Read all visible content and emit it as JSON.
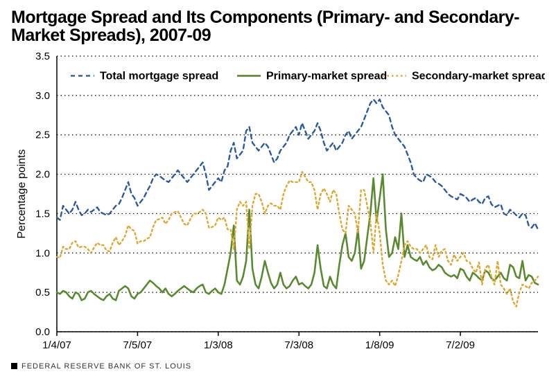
{
  "title": "Mortgage Spread and Its Components (Primary- and Secondary-Market Spreads), 2007-09",
  "chart": {
    "type": "line",
    "background_color": "#ffffff",
    "ylabel": "Percentage points",
    "ylabel_fontsize": 16,
    "tick_fontsize": 15,
    "ylim": [
      0.0,
      3.5
    ],
    "ytick_step": 0.5,
    "yticks": [
      "0.0",
      "0.5",
      "1.0",
      "1.5",
      "2.0",
      "2.5",
      "3.0",
      "3.5"
    ],
    "x_tick_positions": [
      0,
      26,
      52,
      78,
      104,
      130
    ],
    "x_tick_labels": [
      "1/4/07",
      "7/5/07",
      "1/3/08",
      "7/3/08",
      "1/8/09",
      "7/2/09"
    ],
    "x_domain": [
      0,
      155
    ],
    "grid_color": "#000000",
    "line_width": 2.2,
    "legend": {
      "fontsize": 16,
      "items": [
        {
          "label": "Total mortgage spread",
          "color": "#2c5aa0",
          "dash": "6 5",
          "width": 2.4
        },
        {
          "label": "Primary-market spread",
          "color": "#5a8a2f",
          "dash": "",
          "width": 2.6
        },
        {
          "label": "Secondary-market spread",
          "color": "#e0a62f",
          "dash": "2.5 4",
          "width": 2.4
        }
      ]
    },
    "series": [
      {
        "name": "total",
        "color": "#2c5aa0",
        "dash": "6 5",
        "width": 2.4,
        "y": [
          1.45,
          1.42,
          1.6,
          1.55,
          1.5,
          1.55,
          1.65,
          1.55,
          1.48,
          1.5,
          1.55,
          1.52,
          1.55,
          1.58,
          1.52,
          1.5,
          1.48,
          1.5,
          1.55,
          1.6,
          1.62,
          1.7,
          1.8,
          1.9,
          1.75,
          1.7,
          1.6,
          1.65,
          1.7,
          1.78,
          1.85,
          1.95,
          2.0,
          1.98,
          1.95,
          1.92,
          1.9,
          1.95,
          2.0,
          2.05,
          2.0,
          1.95,
          1.9,
          1.95,
          2.0,
          2.05,
          2.1,
          2.15,
          2.0,
          1.8,
          1.85,
          1.9,
          1.95,
          1.9,
          2.05,
          2.1,
          2.3,
          2.4,
          2.2,
          2.25,
          2.3,
          2.55,
          2.6,
          2.4,
          2.35,
          2.3,
          2.35,
          2.4,
          2.35,
          2.25,
          2.15,
          2.2,
          2.3,
          2.35,
          2.4,
          2.5,
          2.55,
          2.6,
          2.5,
          2.65,
          2.55,
          2.45,
          2.5,
          2.55,
          2.65,
          2.55,
          2.4,
          2.3,
          2.35,
          2.4,
          2.3,
          2.35,
          2.4,
          2.5,
          2.55,
          2.45,
          2.5,
          2.55,
          2.6,
          2.7,
          2.8,
          2.9,
          2.95,
          2.9,
          2.95,
          2.85,
          2.8,
          2.75,
          2.6,
          2.5,
          2.45,
          2.4,
          2.35,
          2.25,
          2.15,
          2.0,
          1.95,
          1.92,
          1.9,
          2.0,
          1.98,
          1.95,
          1.9,
          1.88,
          1.85,
          1.8,
          1.75,
          1.72,
          1.7,
          1.68,
          1.75,
          1.73,
          1.7,
          1.65,
          1.68,
          1.7,
          1.65,
          1.62,
          1.7,
          1.72,
          1.62,
          1.58,
          1.6,
          1.62,
          1.5,
          1.48,
          1.55,
          1.52,
          1.48,
          1.45,
          1.5,
          1.48,
          1.35,
          1.32,
          1.38,
          1.3
        ]
      },
      {
        "name": "primary",
        "color": "#5a8a2f",
        "dash": "",
        "width": 2.6,
        "y": [
          0.5,
          0.48,
          0.52,
          0.5,
          0.45,
          0.42,
          0.5,
          0.48,
          0.4,
          0.42,
          0.5,
          0.52,
          0.48,
          0.45,
          0.42,
          0.4,
          0.45,
          0.48,
          0.42,
          0.4,
          0.52,
          0.55,
          0.58,
          0.55,
          0.45,
          0.42,
          0.48,
          0.5,
          0.55,
          0.6,
          0.65,
          0.62,
          0.58,
          0.55,
          0.5,
          0.55,
          0.48,
          0.45,
          0.48,
          0.52,
          0.55,
          0.58,
          0.55,
          0.52,
          0.5,
          0.55,
          0.58,
          0.6,
          0.5,
          0.48,
          0.52,
          0.55,
          0.5,
          0.48,
          0.6,
          0.8,
          1.0,
          1.35,
          0.65,
          0.6,
          0.7,
          0.9,
          1.55,
          0.8,
          0.6,
          0.55,
          0.7,
          0.9,
          0.75,
          0.62,
          0.55,
          0.6,
          0.75,
          0.6,
          0.55,
          0.58,
          0.65,
          0.7,
          0.6,
          0.62,
          0.58,
          0.55,
          0.6,
          0.75,
          1.1,
          0.8,
          0.58,
          0.55,
          0.7,
          0.6,
          0.55,
          0.85,
          1.1,
          1.25,
          0.95,
          0.9,
          1.0,
          1.3,
          0.8,
          0.9,
          1.2,
          1.5,
          1.95,
          1.4,
          1.7,
          2.0,
          1.3,
          0.95,
          1.0,
          1.2,
          1.05,
          1.5,
          0.95,
          1.1,
          0.95,
          0.92,
          0.9,
          0.95,
          0.85,
          0.9,
          0.82,
          0.78,
          0.8,
          0.85,
          0.82,
          0.75,
          0.72,
          0.7,
          0.72,
          0.68,
          0.8,
          0.78,
          0.7,
          0.65,
          0.75,
          0.72,
          0.68,
          0.65,
          0.78,
          0.75,
          0.68,
          0.65,
          0.7,
          0.75,
          0.68,
          0.65,
          0.85,
          0.82,
          0.7,
          0.68,
          0.9,
          0.65,
          0.72,
          0.7,
          0.62,
          0.6
        ]
      },
      {
        "name": "secondary",
        "color": "#e0a62f",
        "dash": "2.5 4",
        "width": 2.4,
        "y": [
          0.95,
          0.94,
          1.08,
          1.05,
          1.05,
          1.13,
          1.15,
          1.07,
          1.08,
          1.08,
          1.05,
          1.0,
          1.07,
          1.13,
          1.1,
          1.1,
          1.03,
          1.02,
          1.13,
          1.2,
          1.1,
          1.15,
          1.22,
          1.35,
          1.3,
          1.28,
          1.12,
          1.15,
          1.15,
          1.18,
          1.2,
          1.33,
          1.42,
          1.43,
          1.45,
          1.37,
          1.42,
          1.5,
          1.52,
          1.53,
          1.45,
          1.37,
          1.35,
          1.43,
          1.5,
          1.5,
          1.52,
          1.55,
          1.5,
          1.32,
          1.33,
          1.35,
          1.45,
          1.42,
          1.45,
          1.3,
          1.3,
          1.05,
          1.55,
          1.65,
          1.6,
          1.65,
          1.05,
          1.6,
          1.75,
          1.75,
          1.65,
          1.5,
          1.6,
          1.63,
          1.6,
          1.6,
          1.55,
          1.75,
          1.85,
          1.92,
          1.9,
          1.9,
          1.9,
          2.03,
          1.97,
          1.9,
          1.9,
          1.8,
          1.55,
          1.75,
          1.82,
          1.75,
          1.65,
          1.8,
          1.75,
          1.5,
          1.3,
          1.25,
          1.6,
          1.55,
          1.5,
          1.25,
          1.8,
          1.8,
          1.6,
          1.4,
          1.0,
          1.5,
          1.25,
          0.85,
          0.65,
          0.6,
          0.65,
          0.58,
          0.72,
          0.9,
          1.1,
          1.15,
          1.08,
          1.05,
          1.05,
          1.0,
          1.05,
          1.1,
          0.95,
          0.92,
          1.1,
          0.95,
          1.03,
          1.05,
          0.9,
          0.85,
          0.98,
          0.9,
          0.95,
          1.0,
          0.9,
          0.88,
          0.8,
          0.75,
          0.88,
          0.6,
          0.8,
          0.85,
          0.7,
          0.6,
          0.9,
          0.6,
          0.55,
          0.48,
          0.55,
          0.38,
          0.32,
          0.5,
          0.6,
          0.58,
          0.55,
          0.62,
          0.65,
          0.7
        ]
      }
    ]
  },
  "footer": "FEDERAL RESERVE BANK OF ST. LOUIS"
}
